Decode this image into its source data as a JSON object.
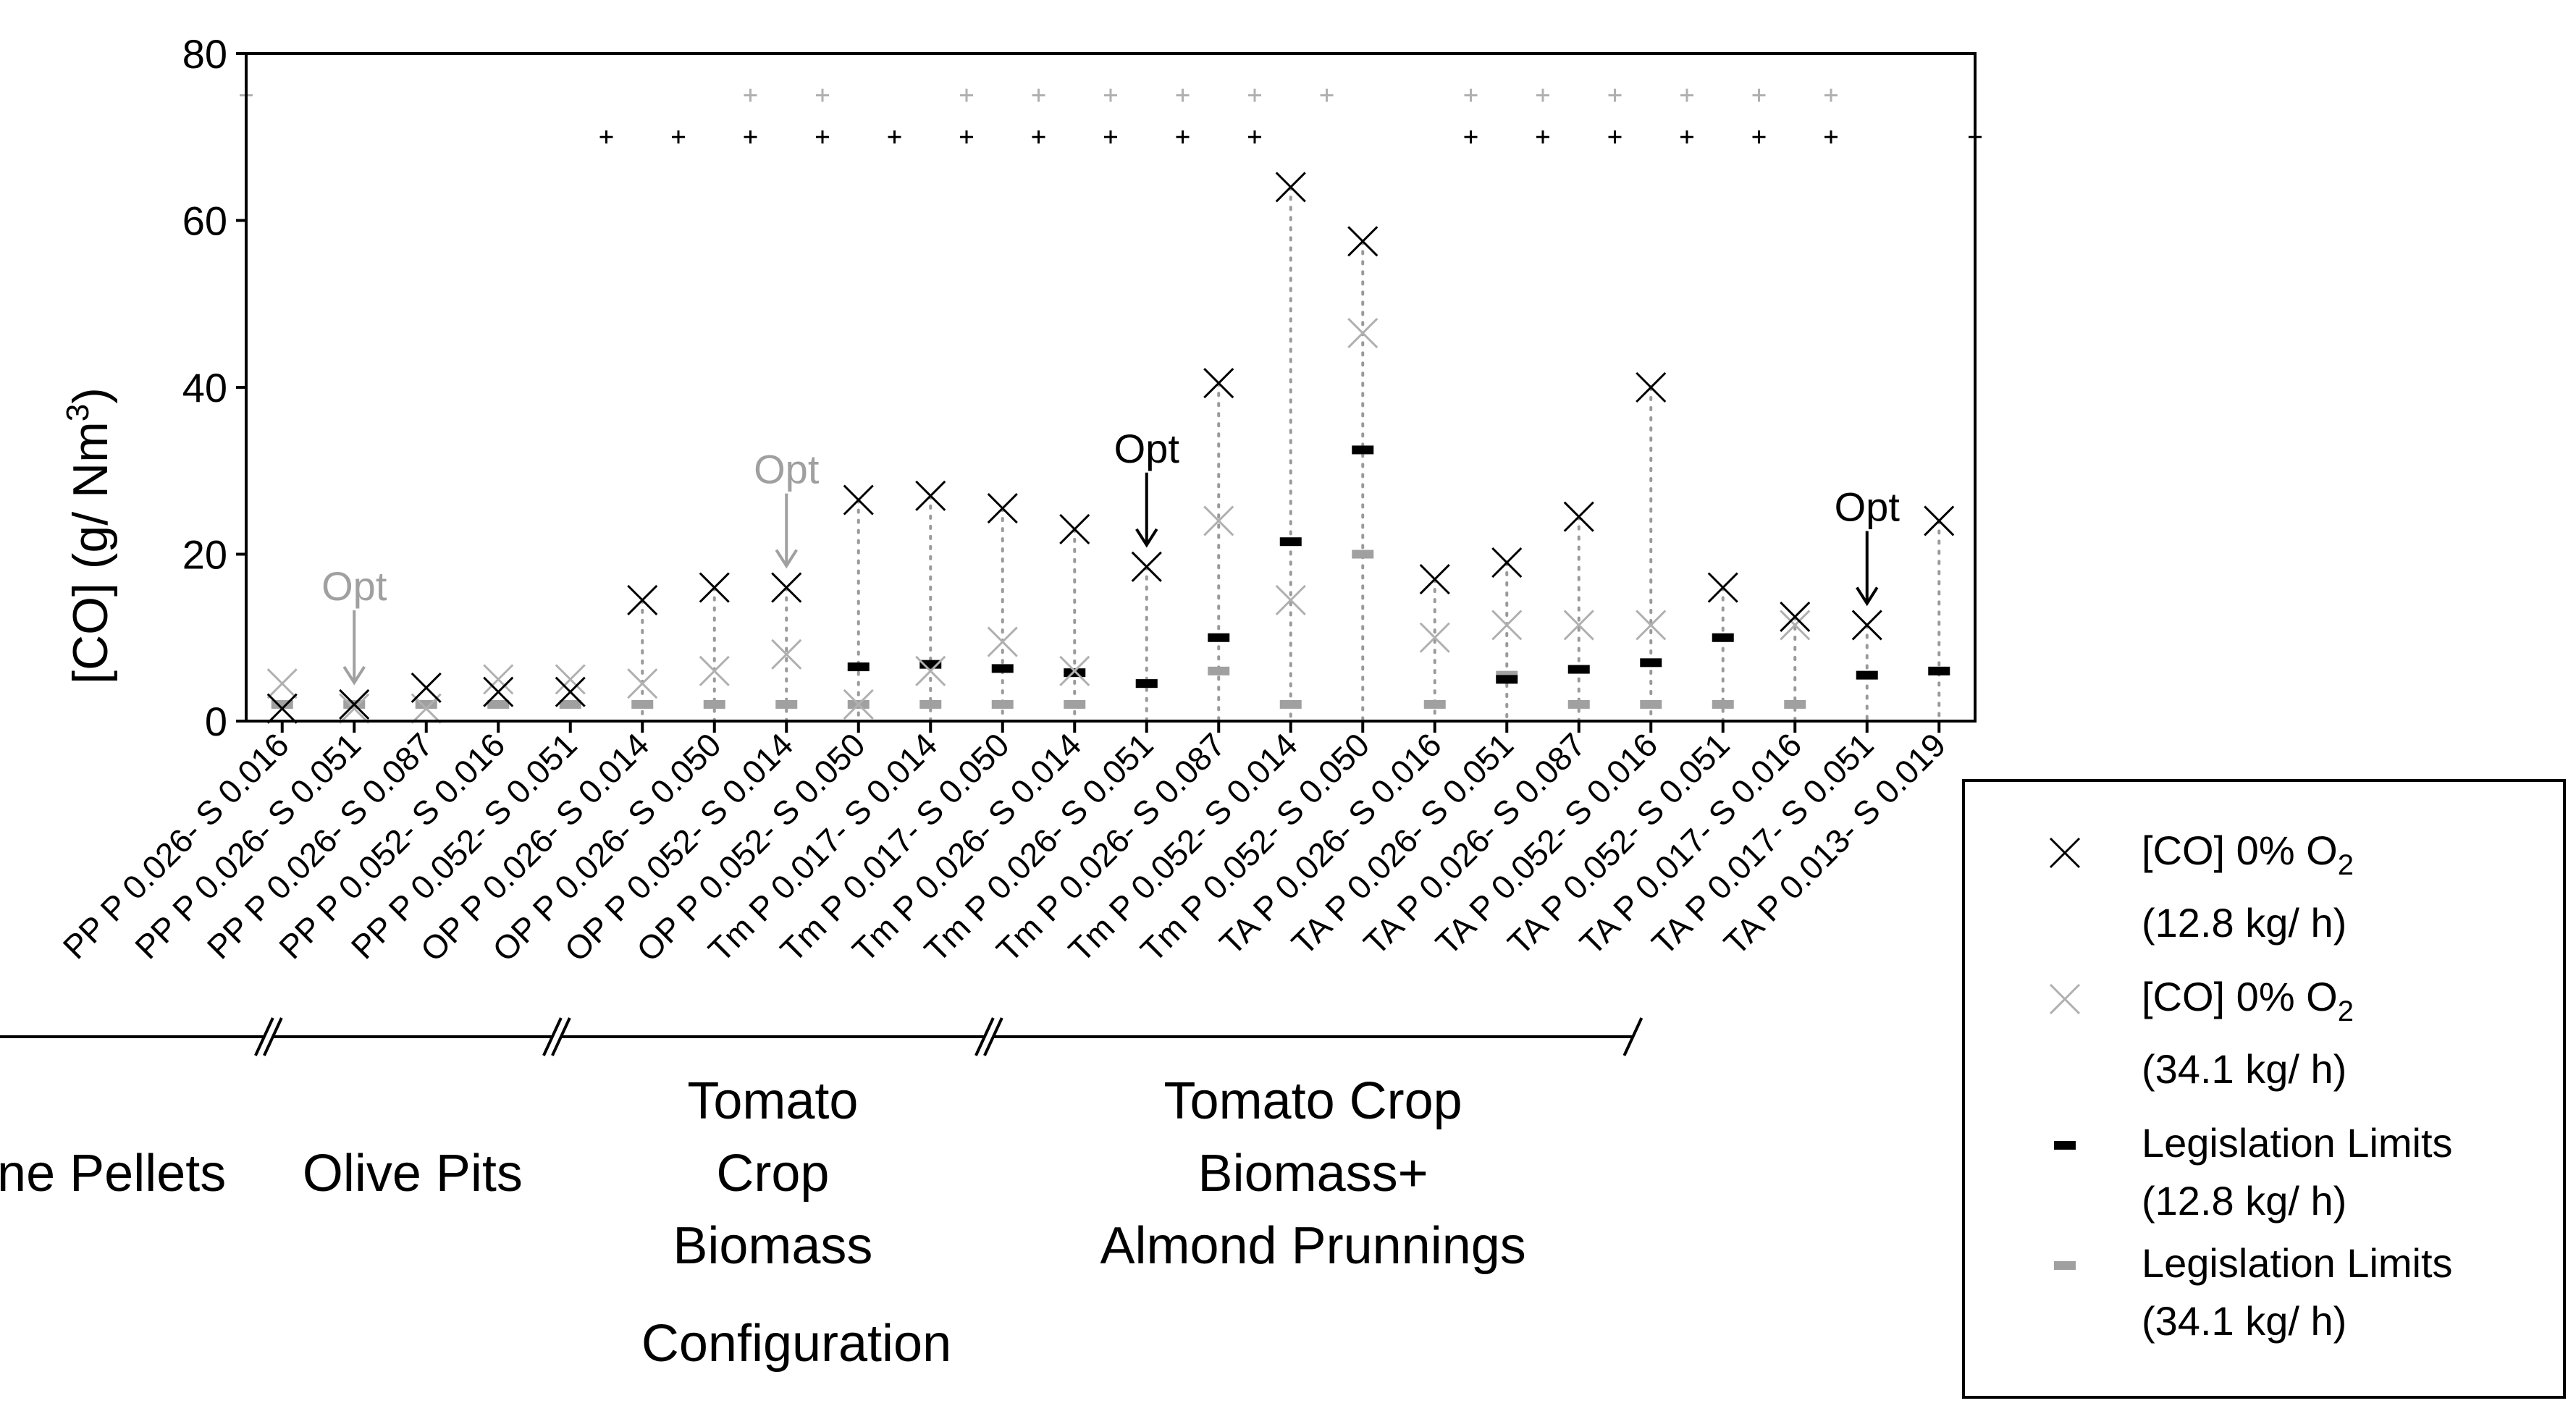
{
  "chart_data": {
    "type": "scatter",
    "title": "",
    "ylabel": "[CO] (g/ Nm3)",
    "ylabel_main": "[CO] (g/ Nm",
    "ylabel_sup": "3",
    "ylabel_close": ")",
    "xlabel": "Configuration",
    "ylim": [
      0,
      80
    ],
    "yticks": [
      "0",
      "20",
      "40",
      "60",
      "80"
    ],
    "categories": [
      "PP P 0.026- S 0.016",
      "PP P 0.026- S 0.051",
      "PP P 0.026- S 0.087",
      "PP P 0.052- S 0.016",
      "PP P 0.052- S 0.051",
      "OP P 0.026- S 0.014",
      "OP P 0.026- S 0.050",
      "OP P 0.052- S 0.014",
      "OP P 0.052- S 0.050",
      "Tm P 0.017- S 0.014",
      "Tm P 0.017- S 0.050",
      "Tm P 0.026- S 0.014",
      "Tm P 0.026- S 0.051",
      "Tm P 0.026- S 0.087",
      "Tm P 0.052- S 0.014",
      "Tm P 0.052- S 0.050",
      "TA P 0.026- S 0.016",
      "TA P 0.026- S 0.051",
      "TA P 0.026- S 0.087",
      "TA P 0.052- S 0.016",
      "TA P 0.052- S 0.051",
      "TA P 0.017- S 0.016",
      "TA P 0.017- S 0.051",
      "TA P 0.013- S 0.019"
    ],
    "series": [
      {
        "name": "[CO] 0% O2 (12.8 kg/ h)",
        "color": "#000000",
        "marker": "x",
        "values": [
          1.5,
          2,
          4,
          3.5,
          3.5,
          14.5,
          16,
          16,
          26.5,
          27,
          25.5,
          23,
          18.5,
          40.5,
          64,
          57.5,
          17,
          19,
          24.5,
          40,
          16,
          12.5,
          11.5,
          24
        ]
      },
      {
        "name": "[CO] 0% O2 (34.1 kg/ h)",
        "color": "#b0b0b0",
        "marker": "x",
        "values": [
          4.5,
          1.5,
          1.5,
          5,
          5,
          4.5,
          6,
          8,
          2,
          6,
          9.5,
          6,
          18.5,
          24,
          14.5,
          46.5,
          10,
          11.5,
          11.5,
          11.5,
          null,
          11.5,
          null,
          null
        ]
      },
      {
        "name": "Legislation Limits (12.8 kg/ h)",
        "color": "#000000",
        "marker": "dash",
        "values": [
          null,
          null,
          null,
          null,
          null,
          null,
          null,
          null,
          6.5,
          6.8,
          6.3,
          5.8,
          4.5,
          10,
          21.5,
          32.5,
          null,
          5,
          6.2,
          7,
          10,
          null,
          5.5,
          6
        ]
      },
      {
        "name": "Legislation Limits (34.1 kg/ h)",
        "color": "#a0a0a0",
        "marker": "dash",
        "values": [
          2,
          2,
          2,
          2,
          2,
          2,
          2,
          2,
          2,
          2,
          2,
          2,
          4.5,
          6,
          2,
          20,
          2,
          5.5,
          2,
          2,
          2,
          2,
          null,
          null
        ]
      }
    ],
    "plus_markers": {
      "row_high": {
        "y": 75,
        "color": "#b0b0b0",
        "indices": [
          0,
          7,
          8,
          10,
          11,
          12,
          13,
          14,
          15,
          17,
          18,
          19,
          20,
          21,
          22
        ]
      },
      "row_low": {
        "y": 70,
        "color": "#000000",
        "indices": [
          5,
          6,
          7,
          8,
          9,
          10,
          11,
          12,
          13,
          14,
          17,
          18,
          19,
          20,
          21,
          22,
          24
        ]
      }
    },
    "annotations": [
      {
        "text": "Opt",
        "index": 1,
        "value": 2,
        "color": "#a0a0a0"
      },
      {
        "text": "Opt",
        "index": 7,
        "value": 16,
        "color": "#a0a0a0"
      },
      {
        "text": "Opt",
        "index": 12,
        "value": 18.5,
        "color": "#000000"
      },
      {
        "text": "Opt",
        "index": 22,
        "value": 11.5,
        "color": "#000000"
      }
    ],
    "groups": [
      {
        "lines": [
          "Pine Pellets"
        ],
        "start": 0,
        "end": 4
      },
      {
        "lines": [
          "Olive Pits"
        ],
        "start": 5,
        "end": 8
      },
      {
        "lines": [
          "Tomato",
          "Crop",
          "Biomass"
        ],
        "start": 9,
        "end": 14
      },
      {
        "lines": [
          "Tomato Crop",
          "Biomass+",
          "Almond Prunnings"
        ],
        "start": 15,
        "end": 23
      }
    ],
    "legend": {
      "position": "right",
      "items": [
        {
          "marker": "x",
          "color": "#000000",
          "label_main": "[CO] 0% O",
          "label_sub": "2",
          "label_line2": "(12.8 kg/ h)"
        },
        {
          "marker": "x",
          "color": "#b0b0b0",
          "label_main": "[CO] 0% O",
          "label_sub": "2",
          "label_line2": "(34.1 kg/ h)"
        },
        {
          "marker": "dash",
          "color": "#000000",
          "label_main": "Legislation Limits",
          "label_sub": "",
          "label_line2": "(12.8 kg/ h)"
        },
        {
          "marker": "dash",
          "color": "#a0a0a0",
          "label_main": "Legislation Limits",
          "label_sub": "",
          "label_line2": "(34.1 kg/ h)"
        }
      ]
    }
  }
}
